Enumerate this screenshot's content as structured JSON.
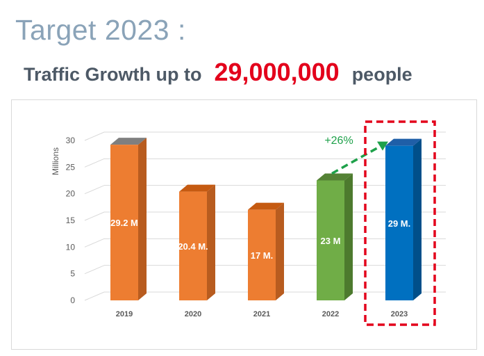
{
  "header": {
    "title": "Target 2023 :",
    "subtitle_prefix": "Traffic Growth up to",
    "subtitle_number": "29,000,000",
    "subtitle_suffix": "people"
  },
  "colors": {
    "title": "#8aa3b8",
    "subtitle": "#4d5966",
    "highlight_number": "#e3001b",
    "growth_arrow": "#1ea14a",
    "highlight_box": "#e3001b"
  },
  "chart_data": {
    "type": "bar",
    "style": "3d-column",
    "ylabel": "Millions",
    "ylim": [
      0,
      30
    ],
    "yticks": [
      0,
      5,
      10,
      15,
      20,
      25,
      30
    ],
    "grid": true,
    "categories": [
      "2019",
      "2020",
      "2021",
      "2022",
      "2023"
    ],
    "values": [
      29.2,
      20.4,
      17,
      22.5,
      29
    ],
    "data_labels": [
      "29.2 M",
      "20.4 M.",
      "17 M.",
      "23 M",
      "29 M."
    ],
    "bar_colors": [
      "#ed7d31",
      "#ed7d31",
      "#ed7d31",
      "#70ad47",
      "#0070c0"
    ],
    "bar_top_colors": [
      "#7f7f7f",
      "#c55a11",
      "#c55a11",
      "#548235",
      "#1f5fa8"
    ],
    "bar_side_colors": [
      "#b85c1f",
      "#b85c1f",
      "#b85c1f",
      "#4d7a2e",
      "#004f8a"
    ],
    "annotation": {
      "text": "+26%",
      "from_category": "2022",
      "to_category": "2023",
      "color": "#1ea14a"
    },
    "highlight_category": "2023"
  }
}
